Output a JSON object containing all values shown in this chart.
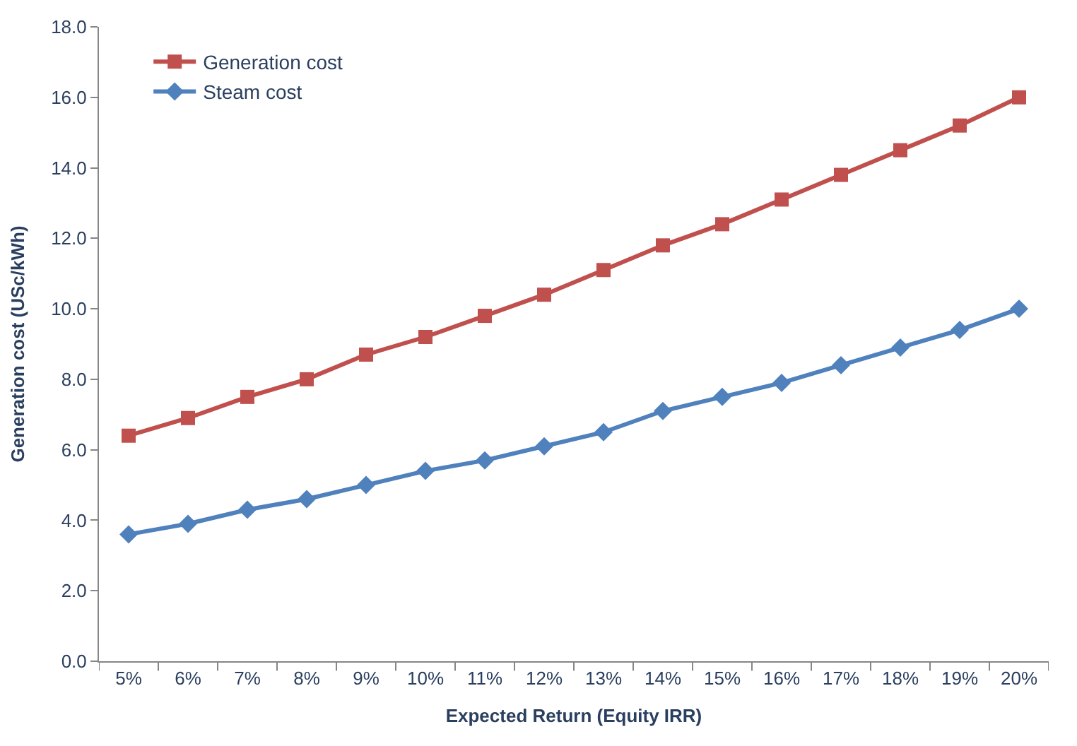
{
  "chart_data": {
    "type": "line",
    "xlabel": "Expected Return (Equity IRR)",
    "ylabel": "Generation cost (USc/kWh)",
    "categories": [
      "5%",
      "6%",
      "7%",
      "8%",
      "9%",
      "10%",
      "11%",
      "12%",
      "13%",
      "14%",
      "15%",
      "16%",
      "17%",
      "18%",
      "19%",
      "20%"
    ],
    "series": [
      {
        "name": "Generation cost",
        "color": "#c0504d",
        "marker": "square",
        "values": [
          6.4,
          6.9,
          7.5,
          8.0,
          8.7,
          9.2,
          9.8,
          10.4,
          11.1,
          11.8,
          12.4,
          13.1,
          13.8,
          14.5,
          15.2,
          16.0
        ]
      },
      {
        "name": "Steam cost",
        "color": "#4f81bd",
        "marker": "diamond",
        "values": [
          3.6,
          3.9,
          4.3,
          4.6,
          5.0,
          5.4,
          5.7,
          6.1,
          6.5,
          7.1,
          7.5,
          7.9,
          8.4,
          8.9,
          9.4,
          10.0
        ]
      }
    ],
    "ylim": [
      0,
      18
    ],
    "yticks": [
      {
        "value": 0,
        "label": "0.0"
      },
      {
        "value": 2,
        "label": "2.0"
      },
      {
        "value": 4,
        "label": "4.0"
      },
      {
        "value": 6,
        "label": "6.0"
      },
      {
        "value": 8,
        "label": "8.0"
      },
      {
        "value": 10,
        "label": "10.0"
      },
      {
        "value": 12,
        "label": "12.0"
      },
      {
        "value": 14,
        "label": "14.0"
      },
      {
        "value": 16,
        "label": "16.0"
      },
      {
        "value": 18,
        "label": "18.0"
      }
    ],
    "grid": false,
    "legend": "top left",
    "line_style": "solid"
  }
}
